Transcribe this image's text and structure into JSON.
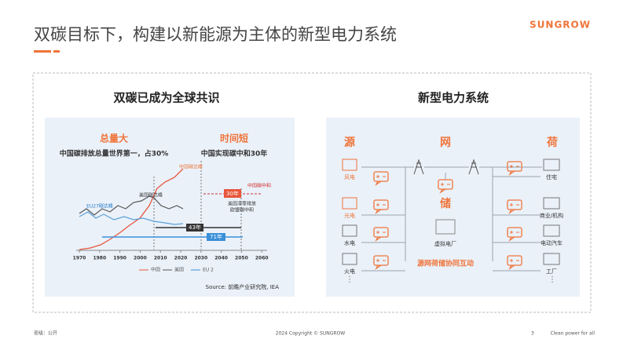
{
  "header": {
    "title": "双碳目标下，构建以新能源为主体的新型电力系统",
    "logo": "SUNGROW"
  },
  "left_panel": {
    "title": "双碳已成为全球共识",
    "callouts": [
      {
        "heading": "总量大",
        "text": "中国碳排放总量世界第一，占30%"
      },
      {
        "heading": "时间短",
        "text": "中国实现碳中和30年"
      }
    ],
    "annotations": {
      "china_peak": "中国碳达峰",
      "china_neutral": "中国碳中和",
      "us_peak": "美国碳达峰",
      "eu_peak": "EU27碳达峰",
      "span_30": "30年",
      "us_eu_line1": "美国净零排放",
      "us_eu_line2": "欧盟碳中和",
      "span_43": "43年",
      "span_71": "71年"
    },
    "xticks": [
      1970,
      1980,
      1990,
      2000,
      2010,
      2020,
      2030,
      2040,
      2050,
      2060
    ],
    "legend": [
      "中国",
      "美国",
      "EU 2"
    ],
    "source": "Source: 前瞻产业研究院, IEA"
  },
  "right_panel": {
    "title": "新型电力系统",
    "columns": {
      "source": "源",
      "grid": "网",
      "load": "荷",
      "storage": "储"
    },
    "sources": [
      "风电",
      "光电",
      "水电",
      "火电"
    ],
    "loads": [
      "住宅",
      "商业/机构",
      "电动汽车",
      "工厂"
    ],
    "more": "⋮",
    "vpp": "虚拟电厂",
    "interaction": "源网荷储协同互动"
  },
  "footer": {
    "classification": "密级：公开",
    "copyright": "2024 Copyright © SUNGROW",
    "page": "3",
    "slogan": "Clean power for all"
  }
}
